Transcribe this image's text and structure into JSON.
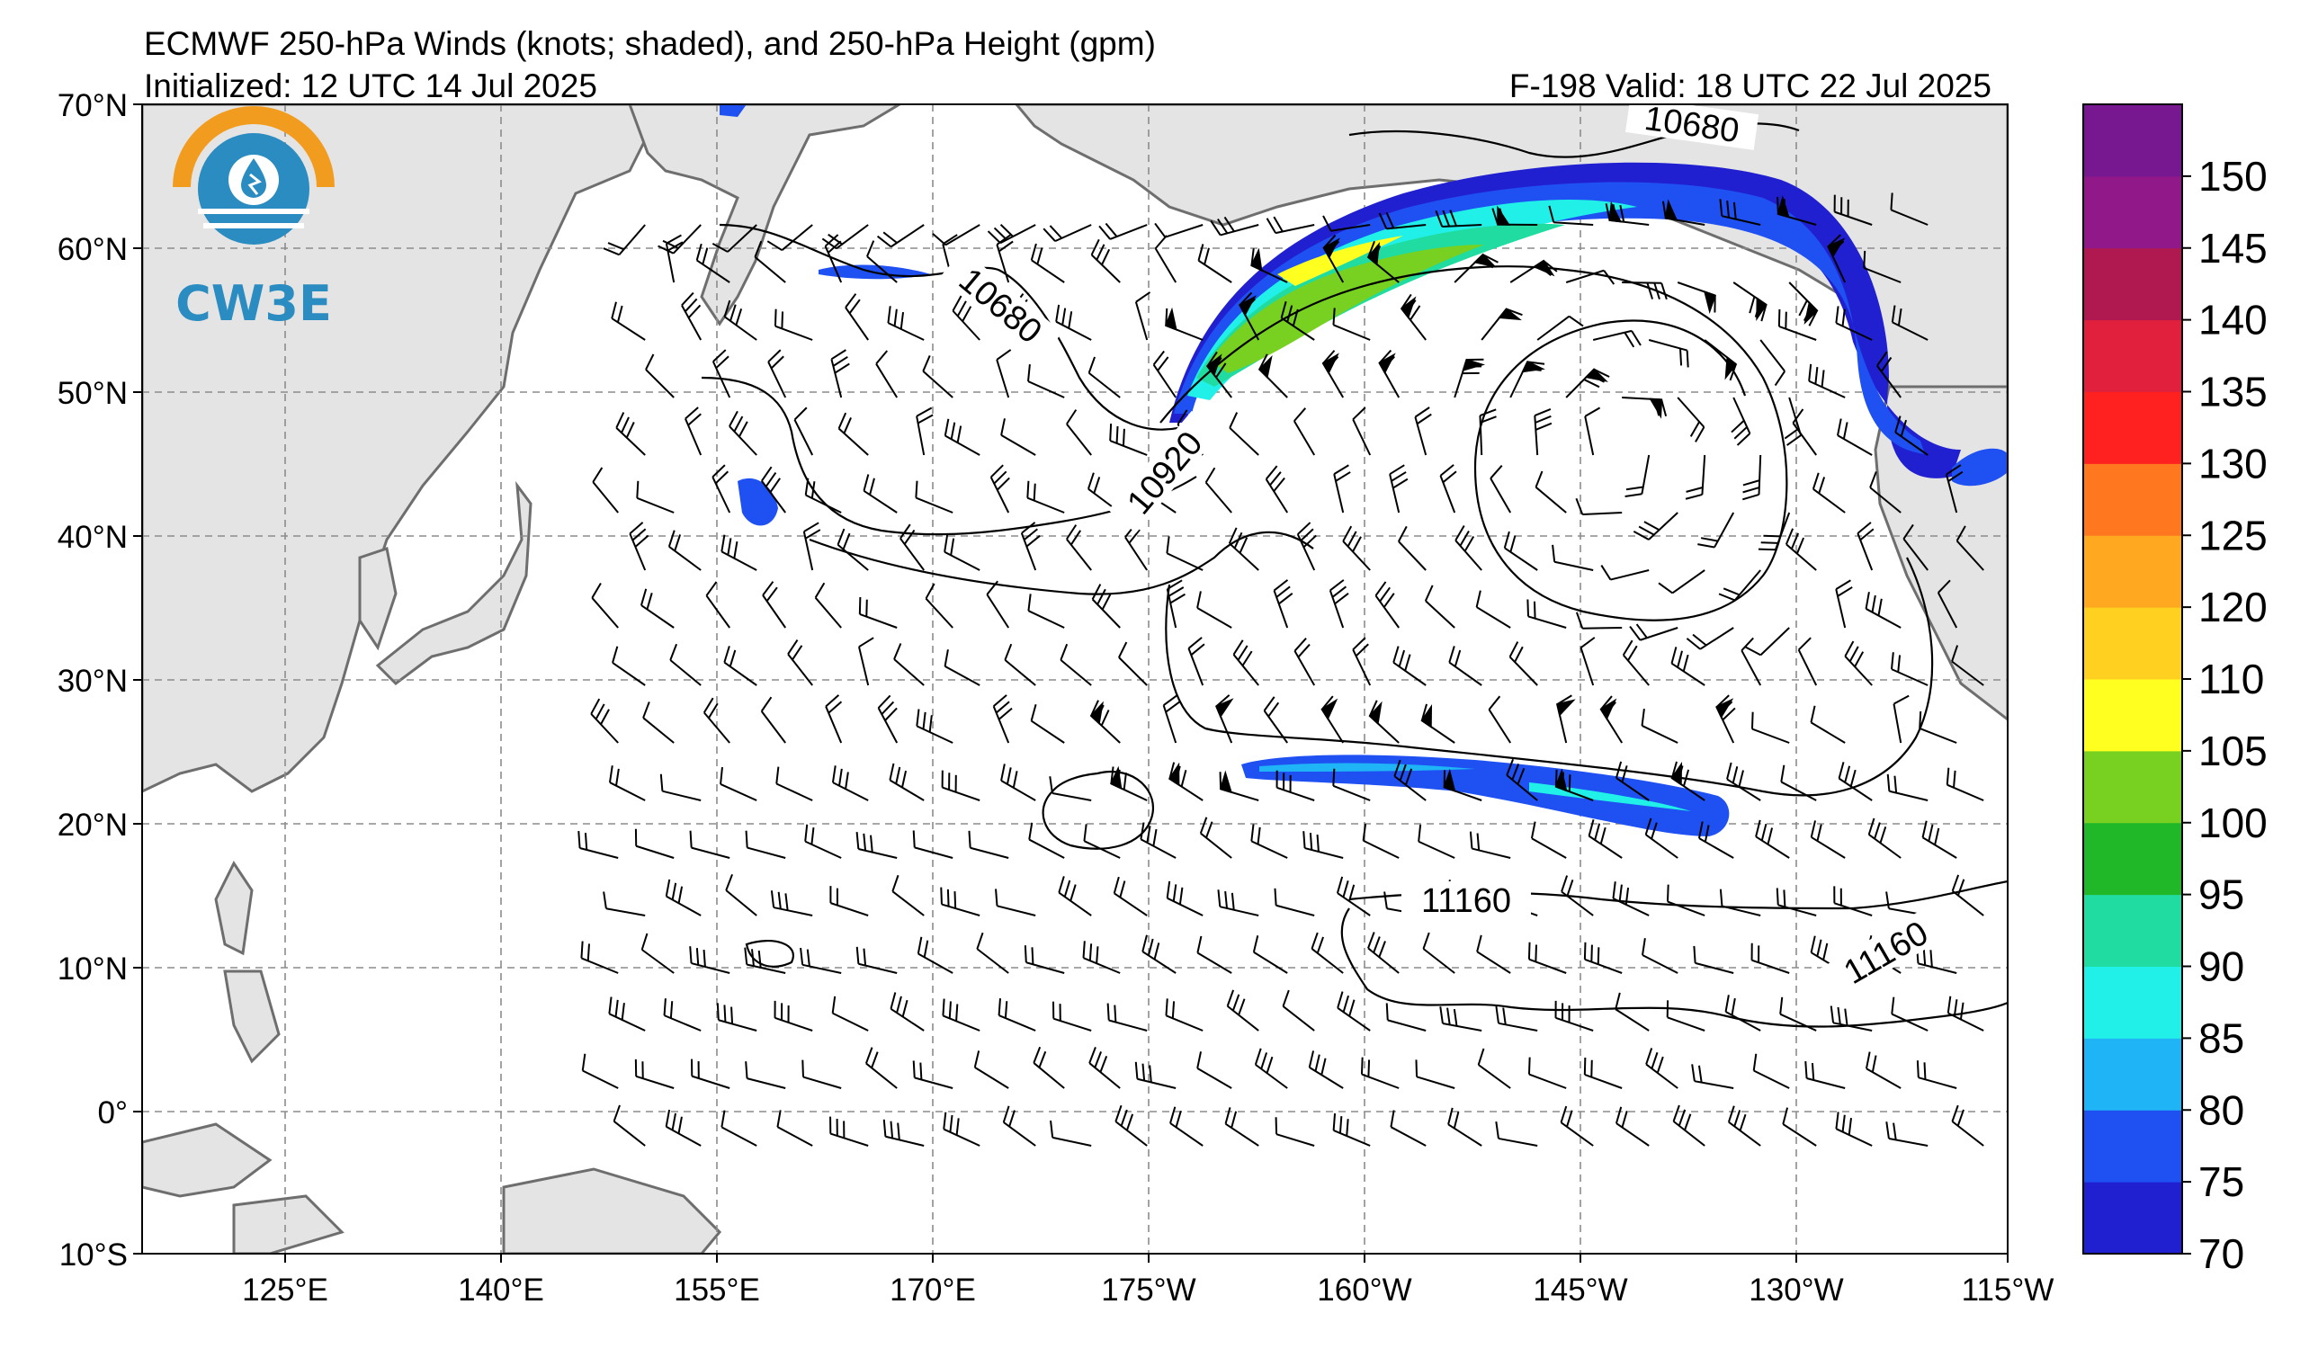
{
  "header": {
    "title": "ECMWF 250-hPa Winds (knots; shaded), and 250-hPa Height (gpm)",
    "initialized": "Initialized: 12 UTC 14 Jul 2025",
    "valid": "F-198  Valid: 18 UTC 22 Jul 2025"
  },
  "logo": {
    "text": "CW3E"
  },
  "axes": {
    "lat_ticks": [
      "70°N",
      "60°N",
      "50°N",
      "40°N",
      "30°N",
      "20°N",
      "10°N",
      "0°",
      "10°S"
    ],
    "lon_ticks": [
      "125°E",
      "140°E",
      "155°E",
      "170°E",
      "175°W",
      "160°W",
      "145°W",
      "130°W",
      "115°W"
    ]
  },
  "contour_labels": [
    "10680",
    "10680",
    "10920",
    "11160",
    "11160"
  ],
  "colorbar": {
    "ticks": [
      "150",
      "145",
      "140",
      "135",
      "130",
      "125",
      "120",
      "110",
      "105",
      "100",
      "95",
      "90",
      "85",
      "80",
      "75",
      "70"
    ],
    "colors": [
      "#2020d0",
      "#1f50f2",
      "#1fb4f5",
      "#20f0e8",
      "#20dca0",
      "#20b828",
      "#78d020",
      "#ffff20",
      "#ffd020",
      "#ffa820",
      "#ff7820",
      "#ff2020",
      "#e0203c",
      "#b01850",
      "#901888",
      "#781890"
    ]
  },
  "colors": {
    "land": "#e4e4e4",
    "coast": "#6e6e6e",
    "grid": "#8c8c8c",
    "logo_orange": "#f29c1f",
    "logo_blue": "#2a8cc0"
  }
}
